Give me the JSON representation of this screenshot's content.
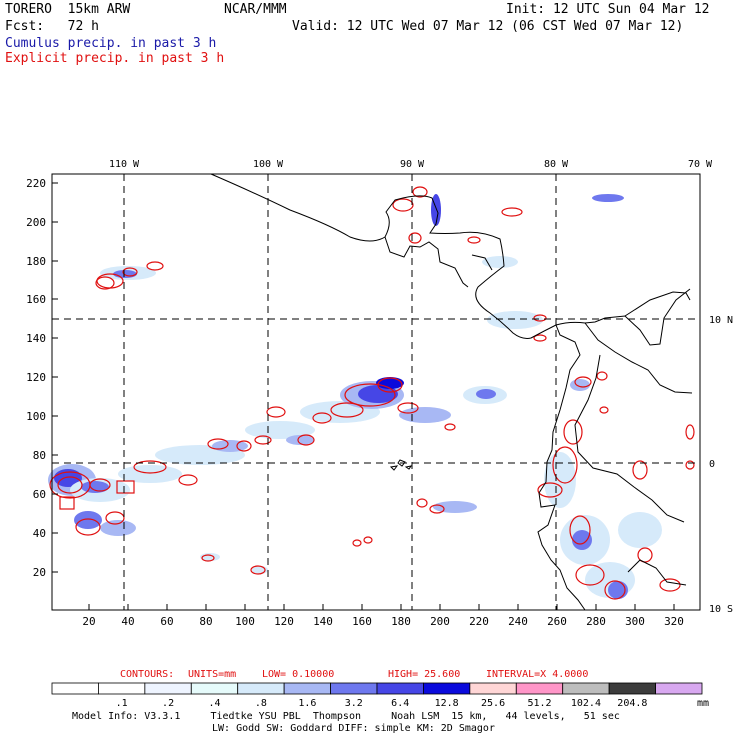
{
  "header": {
    "model_name": "TORERO  15km ARW",
    "center": "NCAR/MMM",
    "init": "Init: 12 UTC Sun 04 Mar 12",
    "forecast": "Fcst:   72 h",
    "valid": "Valid: 12 UTC Wed 07 Mar 12 (06 CST Wed 07 Mar 12)",
    "field1": "Cumulus precip. in past 3 h",
    "field2": "Explicit precip. in past 3 h"
  },
  "map": {
    "top_lon_labels": [
      "110 W",
      "100 W",
      "90 W",
      "80 W",
      "70 W"
    ],
    "right_lat_labels": [
      "10 N",
      "0",
      "10 S"
    ],
    "left_ticks": [
      "220",
      "200",
      "180",
      "160",
      "140",
      "120",
      "100",
      "80",
      "60",
      "40",
      "20"
    ],
    "bottom_ticks": [
      "20",
      "40",
      "60",
      "80",
      "100",
      "120",
      "140",
      "160",
      "180",
      "200",
      "220",
      "240",
      "260",
      "280",
      "300",
      "320"
    ]
  },
  "contour_info": {
    "contours": "CONTOURS:",
    "units": "UNITS=mm",
    "low": "LOW= 0.10000",
    "high": "HIGH=  25.600",
    "interval": "INTERVAL=X  4.0000"
  },
  "legend": {
    "labels": [
      ".1",
      ".2",
      ".4",
      ".8",
      "1.6",
      "3.2",
      "6.4",
      "12.8",
      "25.6",
      "51.2",
      "102.4",
      "204.8"
    ],
    "unit": "mm",
    "colors": [
      "#ffffff",
      "#ffffff",
      "#eef4ff",
      "#e6fbfb",
      "#d6eafa",
      "#a8b8f4",
      "#6e78ee",
      "#4646e6",
      "#0a0adc",
      "#ffd6d6",
      "#ff96c8",
      "#bdbdbd",
      "#3c3c3c",
      "#d8a8f0"
    ]
  },
  "footer": {
    "line1": "Model Info: V3.3.1     Tiedtke YSU PBL  Thompson     Noah LSM  15 km,   44 levels,   51 sec",
    "line2": "LW: Godd SW: Goddard DIFF: simple KM: 2D Smagor"
  }
}
